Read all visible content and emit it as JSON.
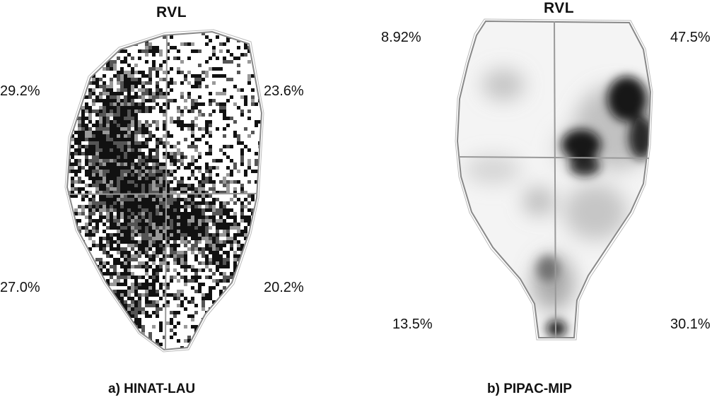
{
  "panel_a": {
    "top_label": "RVL",
    "quadrants": {
      "top_left": "29.2%",
      "top_right": "23.6%",
      "bottom_left": "27.0%",
      "bottom_right": "20.2%"
    },
    "caption": "a) HINAT-LAU"
  },
  "panel_b": {
    "top_label": "RVL",
    "quadrants": {
      "top_left": "8.92%",
      "top_right": "47.5%",
      "bottom_left": "13.5%",
      "bottom_right": "30.1%"
    },
    "caption": "b) PIPAC-MIP"
  }
}
